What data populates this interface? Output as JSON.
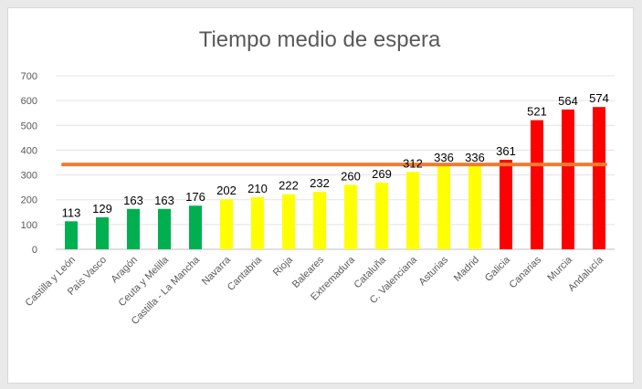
{
  "chart_data": {
    "type": "bar",
    "title": "Tiempo medio de espera",
    "xlabel": "",
    "ylabel": "",
    "ylim": [
      0,
      700
    ],
    "yticks": [
      0,
      100,
      200,
      300,
      400,
      500,
      600,
      700
    ],
    "grid": true,
    "legend": "none",
    "categories": [
      "Castilla y León",
      "País Vasco",
      "Aragón",
      "Ceuta y Melilla",
      "Castilla - La Mancha",
      "Navarra",
      "Cantabria",
      "Rioja",
      "Baleares",
      "Extremadura",
      "Cataluña",
      "C. Valenciana",
      "Asturias",
      "Madrid",
      "Galicia",
      "Canarias",
      "Murcia",
      "Andalucía"
    ],
    "values": [
      113,
      129,
      163,
      163,
      176,
      202,
      210,
      222,
      232,
      260,
      269,
      312,
      336,
      336,
      361,
      521,
      564,
      574
    ],
    "bar_colors": [
      "#00b050",
      "#00b050",
      "#00b050",
      "#00b050",
      "#00b050",
      "#ffff00",
      "#ffff00",
      "#ffff00",
      "#ffff00",
      "#ffff00",
      "#ffff00",
      "#ffff00",
      "#ffff00",
      "#ffff00",
      "#ff0000",
      "#ff0000",
      "#ff0000",
      "#ff0000"
    ],
    "reference_line": {
      "value": 342,
      "color": "#ed7d31"
    }
  }
}
